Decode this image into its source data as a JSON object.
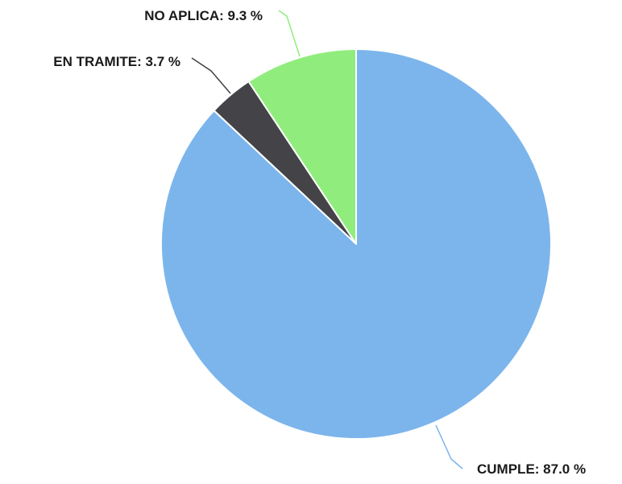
{
  "chart_data": {
    "type": "pie",
    "title": "",
    "slices": [
      {
        "label": "NO APLICA",
        "value": 9.3,
        "display": "NO APLICA: 9.3 %",
        "color": "#90ed7d",
        "connector_color": "#90ed7d"
      },
      {
        "label": "EN TRAMITE",
        "value": 3.7,
        "display": "EN TRAMITE: 3.7 %",
        "color": "#434348",
        "connector_color": "#434348"
      },
      {
        "label": "CUMPLE",
        "value": 87.0,
        "display": "CUMPLE: 87.0 %",
        "color": "#7cb5ec",
        "connector_color": "#7cb5ec"
      }
    ],
    "start_angle_deg": 0,
    "direction": "counterclockwise",
    "slice_border_color": "#ffffff",
    "legend": "none"
  }
}
